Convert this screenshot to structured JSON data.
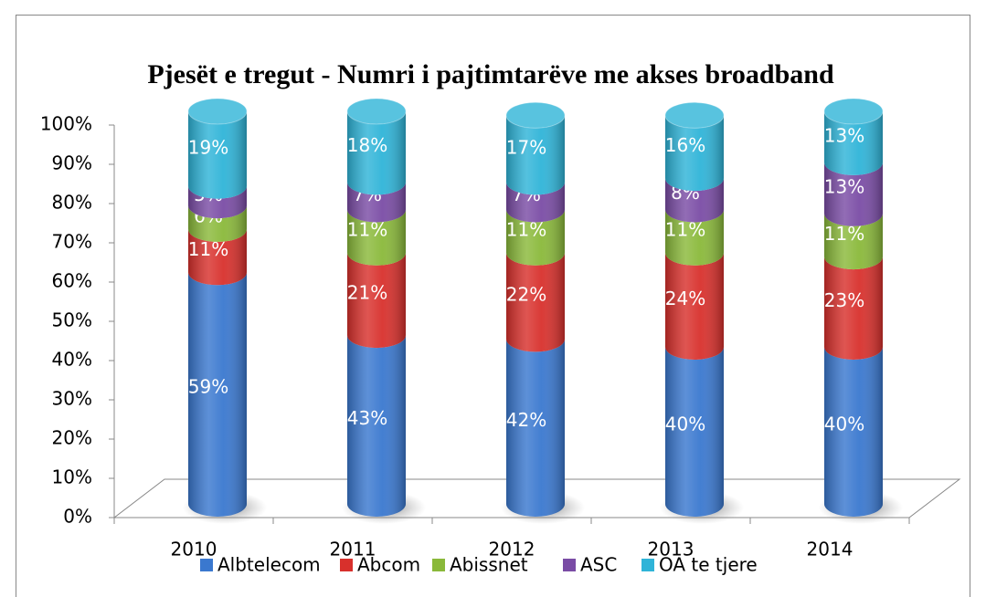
{
  "chart_data": {
    "type": "bar",
    "stacked": true,
    "style": "cylinder-3d",
    "title": "Pjesët e tregut - Numri i pajtimtarëve me akses broadband",
    "categories": [
      "2010",
      "2011",
      "2012",
      "2013",
      "2014"
    ],
    "series": [
      {
        "name": "Albtelecom",
        "color": "#3a78cf",
        "values": [
          59,
          43,
          42,
          40,
          40
        ],
        "value_labels": [
          "59%",
          "43%",
          "42%",
          "40%",
          "40%"
        ]
      },
      {
        "name": "Abcom",
        "color": "#d8302c",
        "values": [
          11,
          21,
          22,
          24,
          23
        ],
        "value_labels": [
          "11%",
          "21%",
          "22%",
          "24%",
          "23%"
        ]
      },
      {
        "name": "Abissnet",
        "color": "#8ab93a",
        "values": [
          6,
          11,
          11,
          11,
          11
        ],
        "value_labels": [
          "6%",
          "11%",
          "11%",
          "11%",
          "11%"
        ]
      },
      {
        "name": "ASC",
        "color": "#7a4ca5",
        "values": [
          5,
          7,
          7,
          8,
          13
        ],
        "value_labels": [
          "5%",
          "7%",
          "7%",
          "8%",
          "13%"
        ]
      },
      {
        "name": "OA te tjere",
        "color": "#2fb4d8",
        "values": [
          19,
          18,
          17,
          16,
          13
        ],
        "value_labels": [
          "19%",
          "18%",
          "17%",
          "16%",
          "13%"
        ]
      }
    ],
    "ylim": [
      0,
      100
    ],
    "yticks": [
      {
        "value": 0,
        "label": "0%"
      },
      {
        "value": 10,
        "label": "10%"
      },
      {
        "value": 20,
        "label": "20%"
      },
      {
        "value": 30,
        "label": "30%"
      },
      {
        "value": 40,
        "label": "40%"
      },
      {
        "value": 50,
        "label": "50%"
      },
      {
        "value": 60,
        "label": "60%"
      },
      {
        "value": 70,
        "label": "70%"
      },
      {
        "value": 80,
        "label": "80%"
      },
      {
        "value": 90,
        "label": "90%"
      },
      {
        "value": 100,
        "label": "100%"
      }
    ],
    "legend": "bottom"
  }
}
